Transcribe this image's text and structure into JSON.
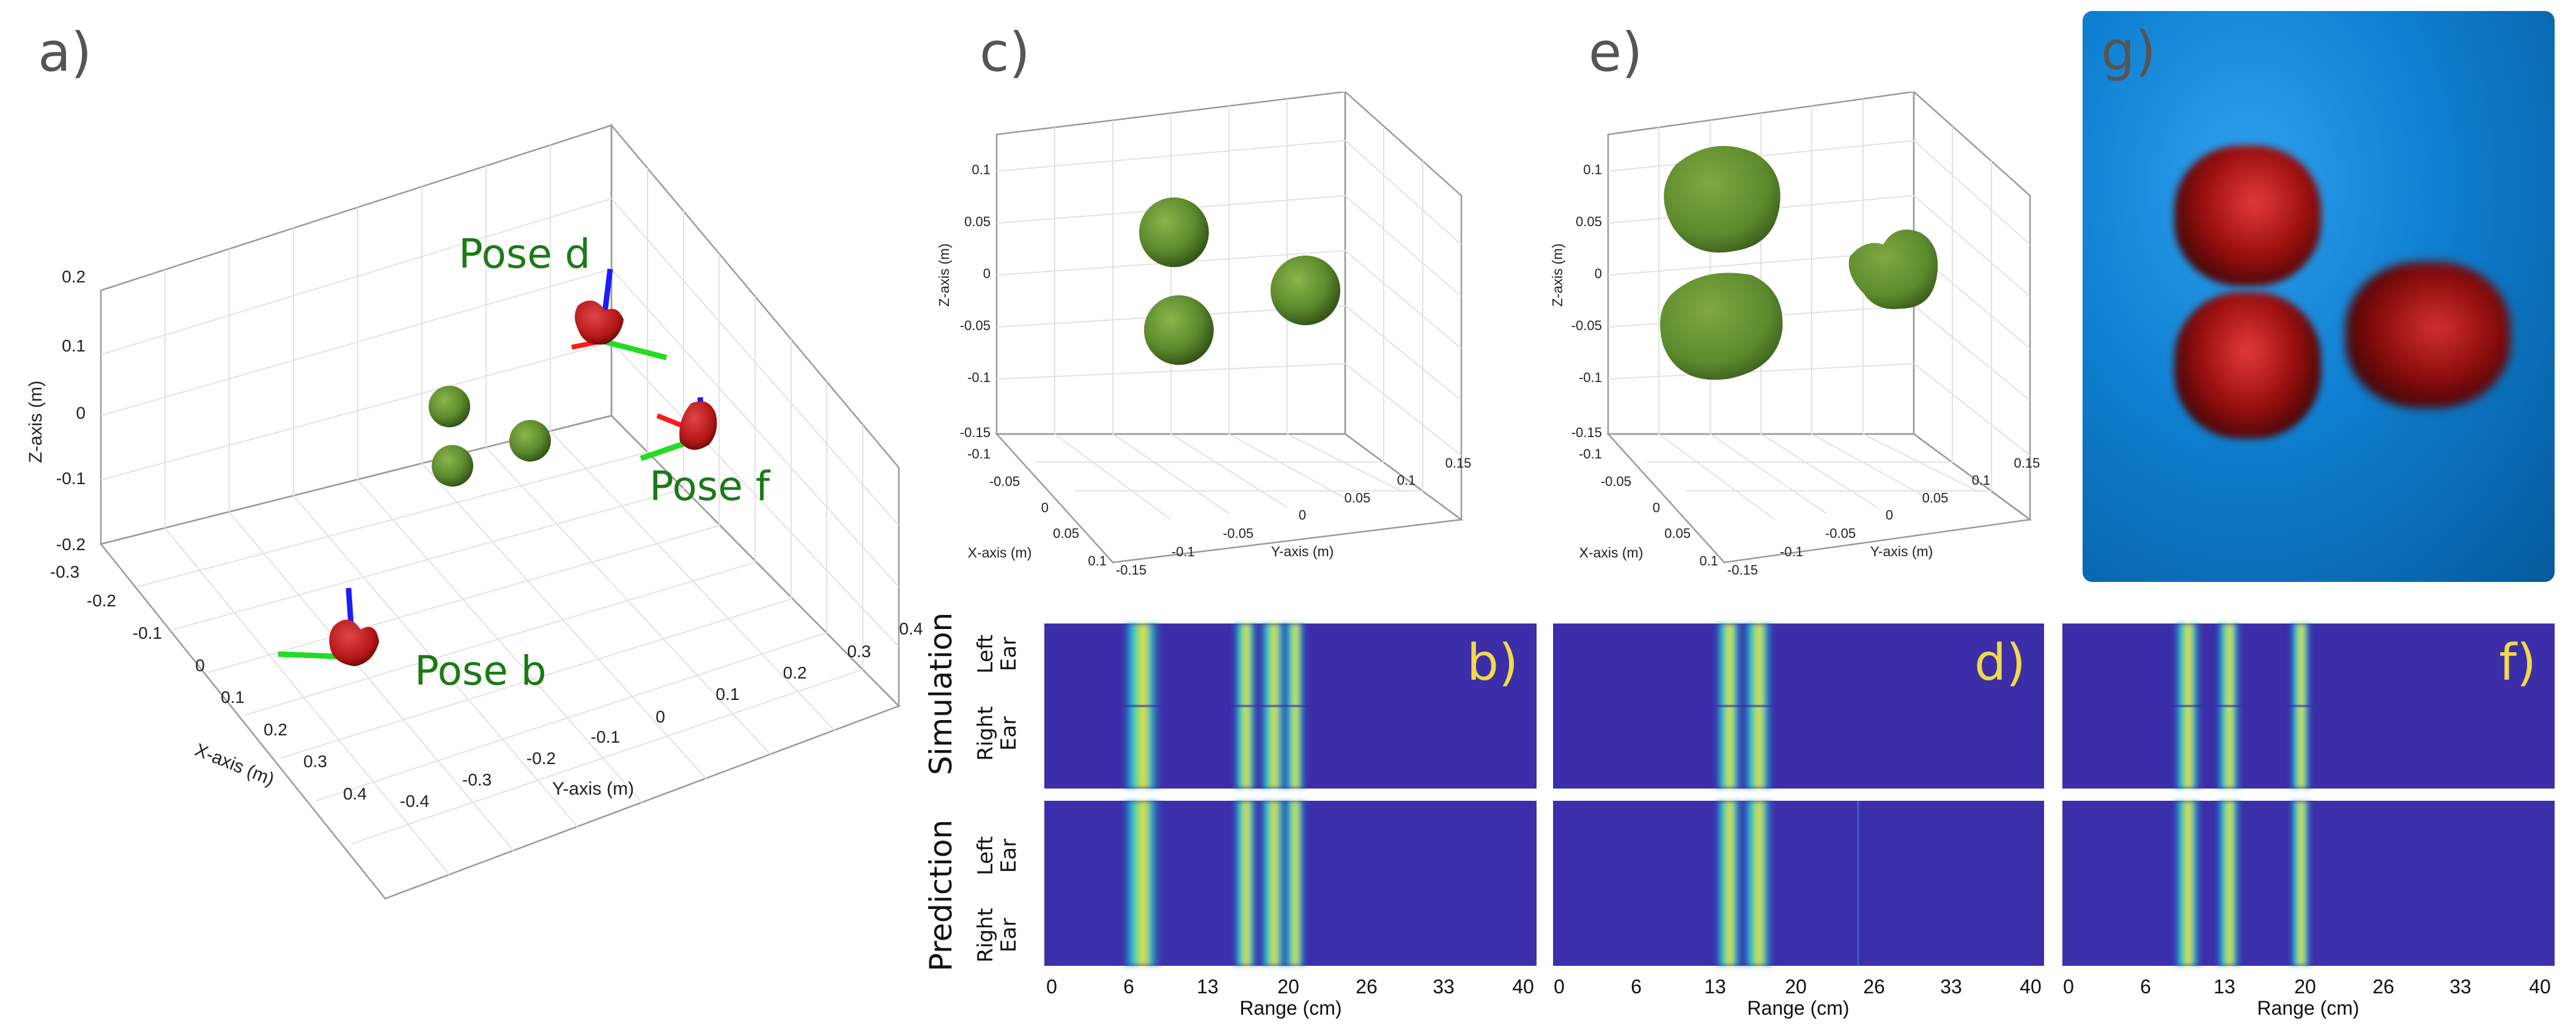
{
  "panels": {
    "a": {
      "letter": "a)",
      "xlabel": "X-axis (m)",
      "ylabel": "Y-axis (m)",
      "zlabel": "Z-axis (m)",
      "z_ticks": [
        "0.2",
        "0.1",
        "0",
        "-0.1",
        "-0.2"
      ],
      "x_ticks": [
        "-0.3",
        "-0.2",
        "-0.1",
        "0",
        "0.1",
        "0.2",
        "0.3",
        "0.4"
      ],
      "y_ticks": [
        "-0.4",
        "-0.3",
        "-0.2",
        "-0.1",
        "0",
        "0.1",
        "0.2",
        "0.3",
        "0.4"
      ],
      "poses": [
        "Pose d",
        "Pose f",
        "Pose b"
      ]
    },
    "c": {
      "letter": "c)",
      "xlabel": "X-axis (m)",
      "ylabel": "Y-axis (m)",
      "zlabel": "Z-axis (m)",
      "z_ticks": [
        "0.1",
        "0.05",
        "0",
        "-0.05",
        "-0.1",
        "-0.15"
      ],
      "x_ticks": [
        "-0.1",
        "-0.05",
        "0",
        "0.05",
        "0.1"
      ],
      "y_ticks": [
        "-0.15",
        "-0.1",
        "-0.05",
        "0",
        "0.05",
        "0.1",
        "0.15"
      ]
    },
    "e": {
      "letter": "e)",
      "xlabel": "X-axis (m)",
      "ylabel": "Y-axis (m)",
      "zlabel": "Z-axis (m)",
      "z_ticks": [
        "0.1",
        "0.05",
        "0",
        "-0.05",
        "-0.1",
        "-0.15"
      ],
      "x_ticks": [
        "-0.1",
        "-0.05",
        "0",
        "0.05",
        "0.1"
      ],
      "y_ticks": [
        "-0.15",
        "-0.1",
        "-0.05",
        "0",
        "0.05",
        "0.1",
        "0.15"
      ]
    },
    "g": {
      "letter": "g)"
    }
  },
  "spectrograms": {
    "row_titles": [
      "Simulation",
      "Prediction"
    ],
    "ear_labels": [
      [
        "Left",
        "Ear"
      ],
      [
        "Right",
        "Ear"
      ]
    ],
    "range_label": "Range (cm)",
    "range_ticks": [
      "0",
      "6",
      "13",
      "20",
      "26",
      "33",
      "40"
    ],
    "panel_letters": [
      "b)",
      "d)",
      "f)"
    ]
  },
  "colors": {
    "sphere_green": "#5d8a2c",
    "bat_red": "#b31616",
    "axis_blue": "#1c1cff",
    "axis_green": "#22dd22",
    "label_green": "#1b7a16",
    "spec_bg": "#3b2ea8",
    "spec_yellow": "#f3dd3b",
    "letter_yellow": "#f0d94a",
    "render_bg": "#0e7fd0"
  }
}
